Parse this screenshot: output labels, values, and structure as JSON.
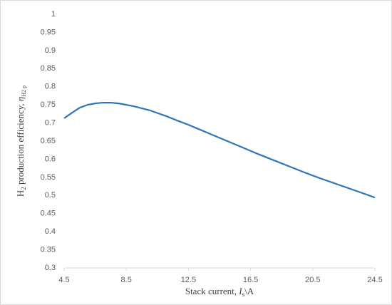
{
  "chart_data": {
    "type": "line",
    "xlabel": [
      "Stack current, ",
      "I",
      "s",
      "\\A"
    ],
    "ylabel": [
      "H",
      "2",
      " production efficiency, ",
      "η",
      "H2 p"
    ],
    "x": [
      4.5,
      5,
      5.5,
      6,
      6.5,
      7,
      7.5,
      8,
      8.5,
      9,
      10,
      11,
      12,
      12.5,
      13,
      14,
      15,
      16,
      16.5,
      17,
      18,
      19,
      20,
      20.5,
      21,
      22,
      23,
      24,
      24.5
    ],
    "series": [
      {
        "color": "#2e75c0",
        "values": [
          0.713,
          0.728,
          0.742,
          0.75,
          0.754,
          0.756,
          0.756,
          0.754,
          0.75,
          0.746,
          0.735,
          0.72,
          0.703,
          0.695,
          0.686,
          0.668,
          0.65,
          0.632,
          0.623,
          0.614,
          0.597,
          0.58,
          0.563,
          0.555,
          0.547,
          0.532,
          0.517,
          0.502,
          0.494
        ]
      }
    ],
    "xlim": [
      4.5,
      24.5
    ],
    "xticks": [
      4.5,
      8.5,
      12.5,
      16.5,
      20.5,
      24.5
    ],
    "ylim": [
      0.3,
      1
    ],
    "yticks": [
      0.3,
      0.35,
      0.4,
      0.45,
      0.5,
      0.55,
      0.6,
      0.65,
      0.7,
      0.75,
      0.8,
      0.85,
      0.9,
      0.95,
      1
    ],
    "grid": false
  }
}
